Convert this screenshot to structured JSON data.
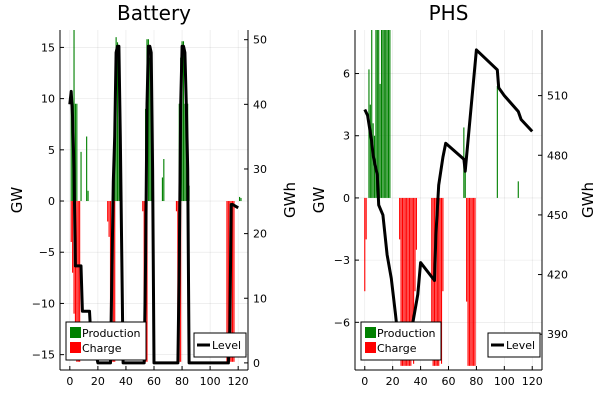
{
  "chart_data": [
    {
      "type": "bar",
      "title": "Battery",
      "xlabel": "",
      "ylabel": "GW",
      "y2label": "GWh",
      "xlim": [
        -7,
        127
      ],
      "ylim": [
        -16.5,
        16.7
      ],
      "y2lim": [
        -1.1,
        51.5
      ],
      "xticks": [
        0,
        20,
        40,
        60,
        80,
        100,
        120
      ],
      "yticks": [
        -15,
        -10,
        -5,
        0,
        5,
        10,
        15
      ],
      "y2ticks": [
        0,
        10,
        20,
        30,
        40,
        50
      ],
      "ytick_labels": [
        "−15",
        "−10",
        "−5",
        "0",
        "5",
        "10",
        "15"
      ],
      "xtick_labels": [
        "0",
        "20",
        "40",
        "60",
        "80",
        "100",
        "120"
      ],
      "y2tick_labels": [
        "0",
        "10",
        "20",
        "30",
        "40",
        "50"
      ],
      "grid": true,
      "series": [
        {
          "name": "Production",
          "color": "#008000",
          "x": [
            1,
            2,
            3,
            4,
            5,
            8,
            12,
            13,
            31,
            32,
            33,
            34,
            35,
            36,
            54,
            55,
            56,
            57,
            58,
            59,
            66,
            67,
            78,
            79,
            80,
            81,
            82,
            83,
            84,
            85,
            121,
            122
          ],
          "values": [
            9.5,
            9.5,
            16.7,
            9.5,
            9.5,
            4.8,
            6.3,
            1.0,
            3.1,
            5.5,
            16.0,
            15.5,
            13.4,
            6.5,
            9.0,
            15.8,
            15.8,
            14.0,
            13.5,
            1.5,
            2.3,
            4.1,
            9.5,
            14.0,
            15.6,
            15.6,
            9.5,
            8.8,
            9.5,
            1.5,
            0.4,
            0.3
          ]
        },
        {
          "name": "Charge",
          "color": "#ff0000",
          "x": [
            1,
            2,
            3,
            4,
            5,
            6,
            7,
            27,
            28,
            29,
            30,
            31,
            32,
            52,
            53,
            54,
            55,
            76,
            77,
            78,
            79,
            112,
            113,
            114,
            115,
            116,
            117
          ],
          "values": [
            -4.0,
            -7.0,
            -11.0,
            -13.5,
            -15.7,
            -15.7,
            -15.7,
            -2.0,
            -3.5,
            -15.7,
            -15.7,
            -15.7,
            -15.7,
            -1.0,
            -15.7,
            -15.7,
            -15.7,
            -1.0,
            -15.7,
            -15.7,
            -15.7,
            -15.7,
            -15.7,
            -15.7,
            -15.7,
            -15.7,
            -15.7
          ]
        },
        {
          "name": "Level",
          "type": "line",
          "axis": "right",
          "color": "#000000",
          "x": [
            0,
            1,
            2,
            3,
            4,
            5,
            6,
            8,
            9,
            14,
            15,
            19,
            20,
            25,
            26,
            28,
            29,
            31,
            32,
            33,
            34,
            35,
            36,
            38,
            40,
            46,
            50,
            53,
            54,
            55,
            56,
            57,
            58,
            59,
            60,
            70,
            75,
            77,
            78,
            79,
            80,
            81,
            82,
            83,
            84,
            85,
            90,
            100,
            110,
            113,
            114,
            115,
            116,
            120
          ],
          "values": [
            40,
            42,
            38,
            30,
            15,
            15,
            15,
            15,
            8,
            8,
            4,
            1,
            0,
            0,
            0,
            0,
            0,
            28,
            35,
            48,
            49,
            49,
            35,
            0,
            0,
            0,
            0,
            0,
            16,
            40,
            49,
            49,
            48,
            30,
            0,
            0,
            0,
            0,
            16,
            40,
            49,
            49,
            48,
            40,
            30,
            0,
            0,
            0,
            0,
            0,
            5,
            24.5,
            24.5,
            24
          ]
        }
      ],
      "legend": "bottom-left",
      "legend2": "bottom-right"
    },
    {
      "type": "bar",
      "title": "PHS",
      "xlabel": "",
      "ylabel": "GW",
      "y2label": "GWh",
      "xlim": [
        -7,
        127
      ],
      "ylim": [
        -8.3,
        8.1
      ],
      "y2lim": [
        372,
        543
      ],
      "xticks": [
        0,
        20,
        40,
        60,
        80,
        100,
        120
      ],
      "yticks": [
        -6,
        -3,
        0,
        3,
        6
      ],
      "y2ticks": [
        390,
        420,
        450,
        480,
        510
      ],
      "ytick_labels": [
        "−6",
        "−3",
        "0",
        "3",
        "6"
      ],
      "xtick_labels": [
        "0",
        "20",
        "40",
        "60",
        "80",
        "100",
        "120"
      ],
      "y2tick_labels": [
        "390",
        "420",
        "450",
        "480",
        "510"
      ],
      "grid": true,
      "series": [
        {
          "name": "Production",
          "color": "#008000",
          "x": [
            3,
            4,
            5,
            6,
            7,
            8,
            9,
            10,
            11,
            12,
            13,
            14,
            15,
            16,
            17,
            18,
            71,
            72,
            95,
            110
          ],
          "values": [
            6.2,
            4.5,
            8.1,
            3.6,
            3.0,
            8.1,
            8.1,
            8.1,
            5.5,
            8.1,
            8.1,
            8.1,
            8.1,
            8.1,
            8.1,
            8.1,
            3.4,
            1.3,
            5.4,
            0.8
          ]
        },
        {
          "name": "Charge",
          "color": "#ff0000",
          "x": [
            0,
            1,
            25,
            26,
            27,
            28,
            29,
            30,
            31,
            32,
            33,
            34,
            35,
            36,
            37,
            48,
            49,
            50,
            51,
            52,
            53,
            54,
            55,
            56,
            73,
            74,
            75,
            76,
            77,
            78,
            79
          ],
          "values": [
            -4.5,
            -2.0,
            -2.0,
            -8.1,
            -8.1,
            -8.1,
            -8.1,
            -8.1,
            -8.1,
            -8.1,
            -8.1,
            -7.5,
            -8.0,
            -4.5,
            -2.5,
            -6.0,
            -8.1,
            -8.1,
            -8.1,
            -8.1,
            -8.1,
            -7.8,
            -8.0,
            -4.5,
            -5.0,
            -8.1,
            -8.1,
            -8.1,
            -8.1,
            -8.1,
            -8.1
          ]
        },
        {
          "name": "Level",
          "type": "line",
          "axis": "right",
          "color": "#000000",
          "x": [
            0,
            2,
            5,
            6,
            9,
            10,
            13,
            16,
            19,
            22,
            24,
            26,
            28,
            30,
            34,
            38,
            40,
            50,
            51,
            53,
            56,
            58,
            71,
            72,
            80,
            95,
            96,
            100,
            110,
            112,
            120
          ],
          "values": [
            503,
            500,
            487,
            480,
            470,
            455,
            450,
            430,
            418,
            400,
            387,
            383,
            380,
            379,
            394,
            410,
            426,
            417,
            440,
            465,
            479,
            486,
            478,
            472,
            533,
            523,
            514,
            510,
            502,
            498,
            492
          ]
        }
      ],
      "legend": "bottom-left",
      "legend2": "bottom-right"
    }
  ]
}
